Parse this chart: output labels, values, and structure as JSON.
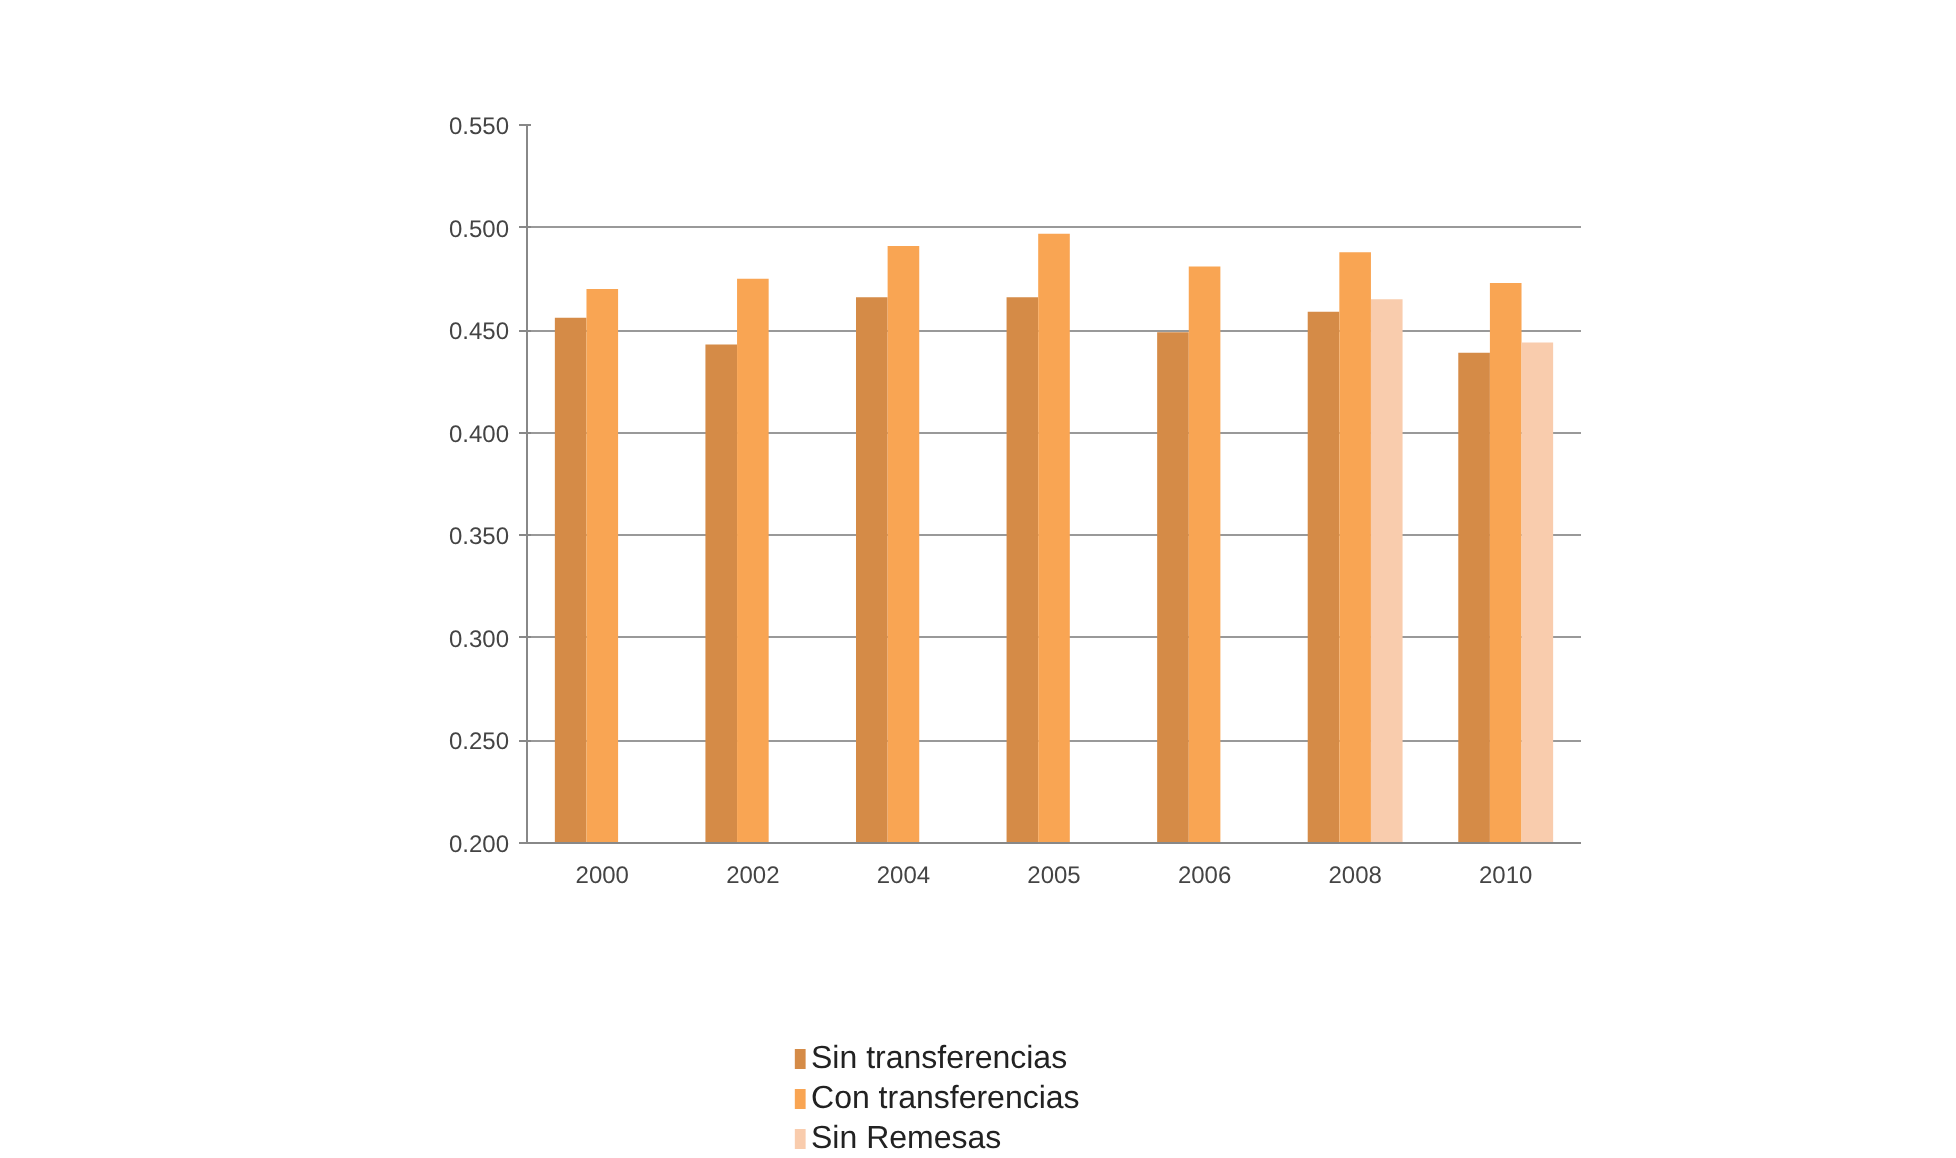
{
  "chart_data": {
    "type": "bar",
    "categories": [
      "2000",
      "2002",
      "2004",
      "2005",
      "2006",
      "2008",
      "2010"
    ],
    "series": [
      {
        "name": "Sin transferencias",
        "color": "#d58b47",
        "values": [
          0.456,
          0.443,
          0.466,
          0.466,
          0.449,
          0.459,
          0.439
        ]
      },
      {
        "name": "Con transferencias",
        "color": "#f9a553",
        "values": [
          0.47,
          0.475,
          0.491,
          0.497,
          0.481,
          0.488,
          0.473
        ]
      },
      {
        "name": "Sin Remesas",
        "color": "#f9ccad",
        "values": [
          null,
          null,
          null,
          null,
          null,
          0.465,
          0.444
        ]
      }
    ],
    "ylim": [
      0.2,
      0.55
    ],
    "yticks": [
      {
        "value": 0.2,
        "label": "0.200"
      },
      {
        "value": 0.25,
        "label": "0.250"
      },
      {
        "value": 0.3,
        "label": "0.300"
      },
      {
        "value": 0.35,
        "label": "0.350"
      },
      {
        "value": 0.4,
        "label": "0.400"
      },
      {
        "value": 0.45,
        "label": "0.450"
      },
      {
        "value": 0.5,
        "label": "0.500"
      },
      {
        "value": 0.55,
        "label": "0.550"
      }
    ],
    "grid": "y",
    "legend": "bottom"
  }
}
